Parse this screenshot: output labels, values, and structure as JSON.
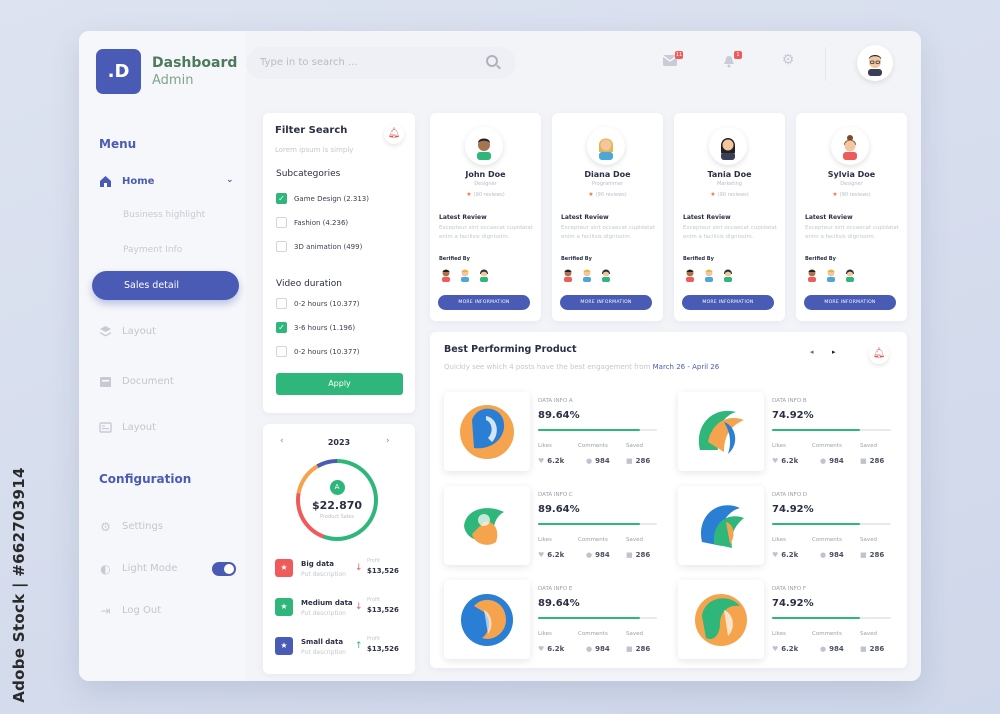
{
  "watermark": "Adobe Stock | #662703914",
  "brand": {
    "logo": ".D",
    "title": "Dashboard",
    "subtitle": "Admin"
  },
  "menu": {
    "heading": "Menu",
    "home": "Home",
    "subitems": [
      "Business highlight",
      "Payment Info",
      "Sales detail"
    ],
    "items": [
      {
        "label": "Layout",
        "icon": "layers-icon"
      },
      {
        "label": "Document",
        "icon": "document-icon"
      },
      {
        "label": "Layout",
        "icon": "list-icon"
      }
    ]
  },
  "config": {
    "heading": "Configuration",
    "items": [
      {
        "label": "Settings",
        "icon": "gear-icon"
      },
      {
        "label": "Light Mode",
        "icon": "half-circle-icon"
      },
      {
        "label": "Log Out",
        "icon": "logout-icon"
      }
    ],
    "light_mode_on": true
  },
  "search": {
    "placeholder": "Type in to search ..."
  },
  "topbar": {
    "mail_badge": "11",
    "bell_badge": "1"
  },
  "filter": {
    "title": "Filter Search",
    "subtitle": "Lorem ipsum is simply",
    "subcategories_label": "Subcategories",
    "subcategories": [
      {
        "label": "Game Design (2.313)",
        "checked": true
      },
      {
        "label": "Fashion (4.236)",
        "checked": false
      },
      {
        "label": "3D animation (499)",
        "checked": false
      }
    ],
    "duration_label": "Video duration",
    "durations": [
      {
        "label": "0-2 hours (10.377)",
        "checked": false
      },
      {
        "label": "3-6 hours (1.196)",
        "checked": true
      },
      {
        "label": "0-2 hours (10.377)",
        "checked": false
      }
    ],
    "apply": "Apply"
  },
  "sales": {
    "year": "2023",
    "badge": "A",
    "value": "$22.870",
    "label": "Product Sales",
    "rows": [
      {
        "title": "Big data",
        "desc": "Put description",
        "profit_label": "Profit",
        "profit": "$13,526",
        "trend": "down",
        "color": "#ef5a5a"
      },
      {
        "title": "Medium data",
        "desc": "Put description",
        "profit_label": "Profit",
        "profit": "$13,526",
        "trend": "down",
        "color": "#2fb67b"
      },
      {
        "title": "Small data",
        "desc": "Put description",
        "profit_label": "Profit",
        "profit": "$13,526",
        "trend": "up",
        "color": "#4a5bb5"
      }
    ]
  },
  "people": [
    {
      "name": "John Doe",
      "role": "Designer",
      "reviews": "(90 reviews)",
      "review_label": "Latest Review",
      "review": "Excepteur sint occaecat cupidatat enim a facilisis dignissim.",
      "verified": "Berified By",
      "button": "MORE INFORMATION"
    },
    {
      "name": "Diana Doe",
      "role": "Programmer",
      "reviews": "(90 reviews)",
      "review_label": "Latest Review",
      "review": "Excepteur sint occaecat cupidatat enim a facilisis dignissim.",
      "verified": "Berified By",
      "button": "MORE INFORMATION"
    },
    {
      "name": "Tania Doe",
      "role": "Marketing",
      "reviews": "(90 reviews)",
      "review_label": "Latest Review",
      "review": "Excepteur sint occaecat cupidatat enim a facilisis dignissim.",
      "verified": "Berified By",
      "button": "MORE INFORMATION"
    },
    {
      "name": "Sylvia Doe",
      "role": "Designer",
      "reviews": "(90 reviews)",
      "review_label": "Latest Review",
      "review": "Excepteur sint occaecat cupidatat enim a facilisis dignissim.",
      "verified": "Berified By",
      "button": "MORE INFORMATION"
    }
  ],
  "best": {
    "title": "Best Performing Product",
    "subtitle": "Quickly see which 4 posts have the best engagement from",
    "range": "March 26 - April 26",
    "products": [
      {
        "label": "DATA INFO A",
        "value": "89.64%",
        "progress": 0.86,
        "likes_label": "Likes",
        "likes": "6.2k",
        "comments_label": "Comments",
        "comments": "984",
        "saved_label": "Saved",
        "saved": "286"
      },
      {
        "label": "DATA INFO B",
        "value": "74.92%",
        "progress": 0.74,
        "likes_label": "Likes",
        "likes": "6.2k",
        "comments_label": "Comments",
        "comments": "984",
        "saved_label": "Saved",
        "saved": "286"
      },
      {
        "label": "DATA INFO C",
        "value": "89.64%",
        "progress": 0.86,
        "likes_label": "Likes",
        "likes": "6.2k",
        "comments_label": "Comments",
        "comments": "984",
        "saved_label": "Saved",
        "saved": "286"
      },
      {
        "label": "DATA INFO D",
        "value": "74.92%",
        "progress": 0.74,
        "likes_label": "Likes",
        "likes": "6.2k",
        "comments_label": "Comments",
        "comments": "984",
        "saved_label": "Saved",
        "saved": "286"
      },
      {
        "label": "DATA INFO E",
        "value": "89.64%",
        "progress": 0.86,
        "likes_label": "Likes",
        "likes": "6.2k",
        "comments_label": "Comments",
        "comments": "984",
        "saved_label": "Saved",
        "saved": "286"
      },
      {
        "label": "DATA INFO F",
        "value": "74.92%",
        "progress": 0.74,
        "likes_label": "Likes",
        "likes": "6.2k",
        "comments_label": "Comments",
        "comments": "984",
        "saved_label": "Saved",
        "saved": "286"
      }
    ]
  }
}
